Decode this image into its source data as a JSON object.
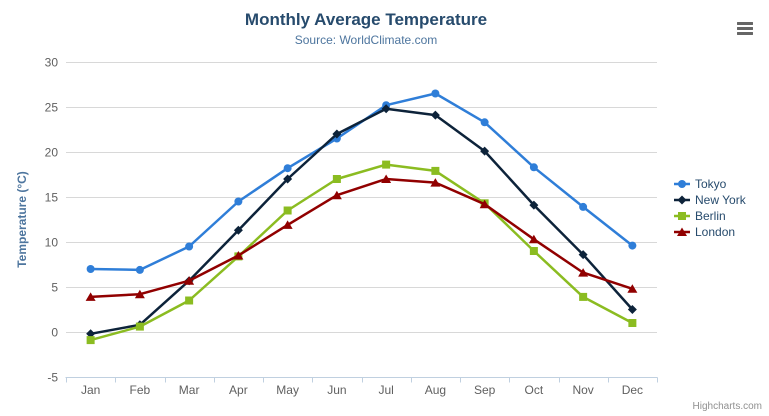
{
  "header": {
    "title": "Monthly Average Temperature",
    "subtitle": "Source: WorldClimate.com"
  },
  "chart_data": {
    "type": "line",
    "title": "Monthly Average Temperature",
    "subtitle": "Source: WorldClimate.com",
    "categories": [
      "Jan",
      "Feb",
      "Mar",
      "Apr",
      "May",
      "Jun",
      "Jul",
      "Aug",
      "Sep",
      "Oct",
      "Nov",
      "Dec"
    ],
    "xlabel": "",
    "ylabel": "Temperature (°C)",
    "ylim": [
      -5,
      30
    ],
    "yticks": [
      -5,
      0,
      5,
      10,
      15,
      20,
      25,
      30
    ],
    "grid": true,
    "legend_position": "right",
    "series": [
      {
        "name": "Tokyo",
        "color": "#2f7ed8",
        "marker": "circle",
        "values": [
          7.0,
          6.9,
          9.5,
          14.5,
          18.2,
          21.5,
          25.2,
          26.5,
          23.3,
          18.3,
          13.9,
          9.6
        ]
      },
      {
        "name": "New York",
        "color": "#0d233a",
        "marker": "diamond",
        "values": [
          -0.2,
          0.8,
          5.7,
          11.3,
          17.0,
          22.0,
          24.8,
          24.1,
          20.1,
          14.1,
          8.6,
          2.5
        ]
      },
      {
        "name": "Berlin",
        "color": "#8bbc21",
        "marker": "square",
        "values": [
          -0.9,
          0.6,
          3.5,
          8.4,
          13.5,
          17.0,
          18.6,
          17.9,
          14.3,
          9.0,
          3.9,
          1.0
        ]
      },
      {
        "name": "London",
        "color": "#910000",
        "marker": "triangle",
        "values": [
          3.9,
          4.2,
          5.7,
          8.5,
          11.9,
          15.2,
          17.0,
          16.6,
          14.2,
          10.3,
          6.6,
          4.8
        ]
      }
    ]
  },
  "credits": {
    "label": "Highcharts.com"
  },
  "colors": {
    "title": "#274b6d",
    "subtitle": "#4d759e",
    "axis_label": "#606060",
    "axis_title": "#4d759e",
    "legend_text": "#274b6d",
    "gridline": "#d8d8d8",
    "axis_line": "#c0d0e0",
    "credits": "#909090",
    "menu_icon": "#666666"
  }
}
